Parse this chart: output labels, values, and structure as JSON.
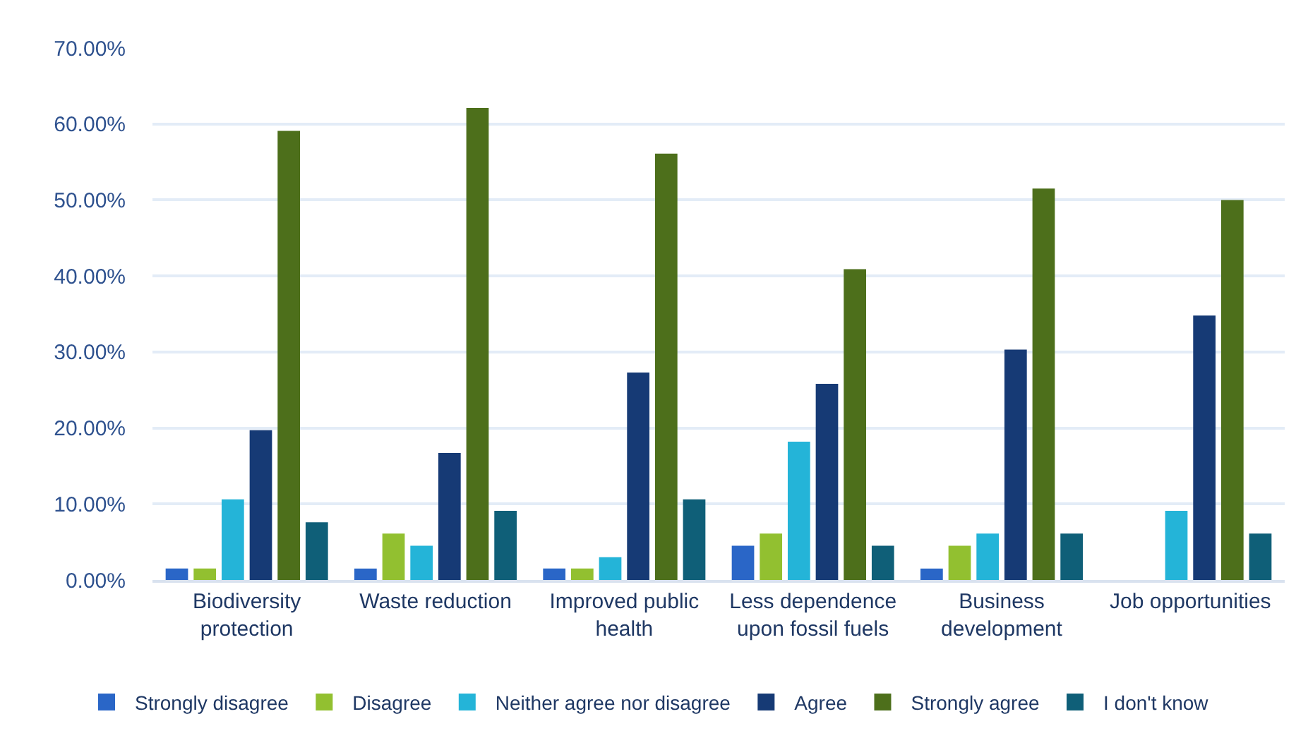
{
  "chart_data": {
    "type": "bar",
    "categories": [
      "Biodiversity protection",
      "Waste reduction",
      "Improved public health",
      "Less dependence upon fossil fuels",
      "Business development",
      "Job opportunities"
    ],
    "series": [
      {
        "name": "Strongly disagree",
        "color": "#2a66c7",
        "values": [
          1.5,
          1.5,
          1.5,
          4.5,
          1.5,
          0
        ]
      },
      {
        "name": "Disagree",
        "color": "#92c030",
        "values": [
          1.5,
          6.1,
          1.5,
          6.1,
          4.5,
          0
        ]
      },
      {
        "name": "Neither agree nor disagree",
        "color": "#24b4d8",
        "values": [
          10.6,
          4.5,
          3.0,
          18.2,
          6.1,
          9.1
        ]
      },
      {
        "name": "Agree",
        "color": "#163a75",
        "values": [
          19.7,
          16.7,
          27.3,
          25.8,
          30.3,
          34.8
        ]
      },
      {
        "name": "Strongly agree",
        "color": "#4d6f1b",
        "values": [
          59.1,
          62.1,
          56.1,
          40.9,
          51.5,
          50.0
        ]
      },
      {
        "name": "I don't know",
        "color": "#0f5f78",
        "values": [
          7.6,
          9.1,
          10.6,
          4.5,
          6.1,
          6.1
        ]
      }
    ],
    "ylim": [
      0,
      70
    ],
    "yticks": [
      {
        "value": 0,
        "label": "0.00%"
      },
      {
        "value": 10,
        "label": "10.00%"
      },
      {
        "value": 20,
        "label": "20.00%"
      },
      {
        "value": 30,
        "label": "30.00%"
      },
      {
        "value": 40,
        "label": "40.00%"
      },
      {
        "value": 50,
        "label": "50.00%"
      },
      {
        "value": 60,
        "label": "60.00%"
      },
      {
        "value": 70,
        "label": "70.00%"
      }
    ],
    "grid": "y",
    "legend": "bottom"
  }
}
